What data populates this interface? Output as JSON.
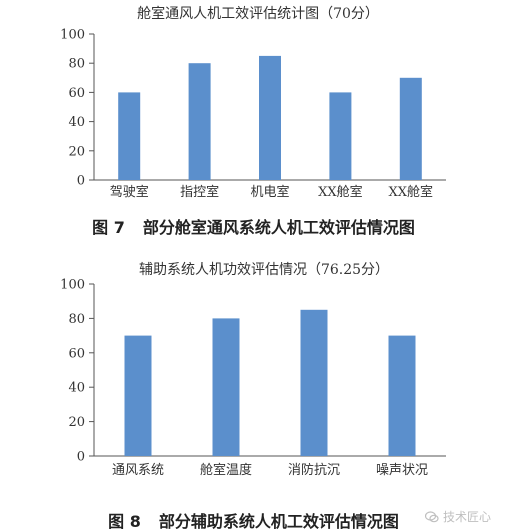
{
  "colors": {
    "bar": "#5b8fcc",
    "axis": "#555555",
    "grid": "#d9d9d9"
  },
  "figures": [
    {
      "caption_num": "图 7",
      "caption_text": "部分舱室通风系统人机工效评估情况图"
    },
    {
      "caption_num": "图 8",
      "caption_text": "部分辅助系统人机工效评估情况图"
    }
  ],
  "chart_data": [
    {
      "type": "bar",
      "title": "舱室通风人机工效评估统计图（70分）",
      "categories": [
        "驾驶室",
        "指控室",
        "机电室",
        "XX舱室",
        "XX舱室"
      ],
      "values": [
        60,
        80,
        85,
        60,
        70
      ],
      "ylim": [
        0,
        100
      ],
      "yticks": [
        "0",
        "20",
        "40",
        "60",
        "80",
        "100"
      ],
      "xlabel": "",
      "ylabel": "",
      "grid": false,
      "legend": "none"
    },
    {
      "type": "bar",
      "title": "辅助系统人机功效评估情况（76.25分）",
      "categories": [
        "通风系统",
        "舱室温度",
        "消防抗沉",
        "噪声状况"
      ],
      "values": [
        70,
        80,
        85,
        70
      ],
      "ylim": [
        0,
        100
      ],
      "yticks": [
        "0",
        "20",
        "40",
        "60",
        "80",
        "100"
      ],
      "xlabel": "",
      "ylabel": "",
      "grid": false,
      "legend": "none"
    }
  ],
  "watermark": {
    "text": "技术匠心",
    "icon": "wechat-icon"
  }
}
